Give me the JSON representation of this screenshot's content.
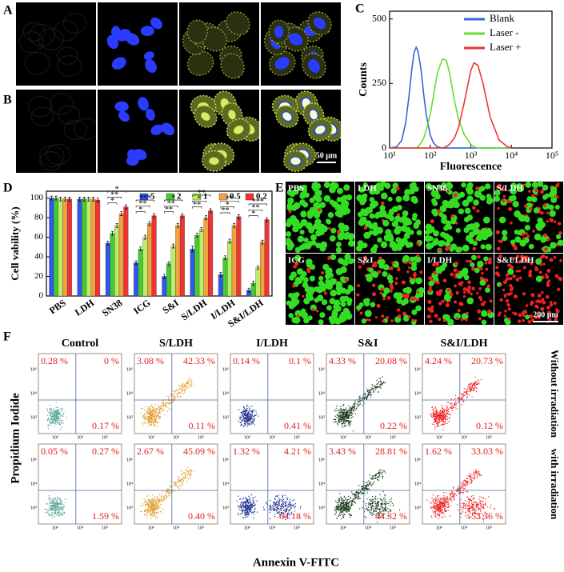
{
  "panel_labels": [
    "A",
    "B",
    "C",
    "D",
    "E",
    "F"
  ],
  "microscopy": {
    "scale_bar": "50 μm"
  },
  "live_dead": {
    "labels": [
      "PBS",
      "LDH",
      "SN38",
      "S/LDH",
      "ICG",
      "S&I",
      "I/LDH",
      "S&I/LDH"
    ],
    "scale_bar": "200 μm"
  },
  "chart_data": [
    {
      "type": "line",
      "x_label": "Fluorescence",
      "y_label": "Counts",
      "log_x": true,
      "legend": "top-right",
      "x": [
        10,
        15,
        20,
        25,
        30,
        35,
        40,
        45,
        50,
        60,
        70,
        80,
        100,
        120,
        150,
        200,
        250,
        300,
        400,
        500,
        700,
        1000,
        1200,
        1500,
        2000,
        3000,
        5000,
        8000,
        10000
      ],
      "series": [
        {
          "name": "Blank",
          "color": "#3366dd",
          "values": [
            0,
            5,
            30,
            100,
            200,
            300,
            370,
            390,
            375,
            300,
            200,
            130,
            50,
            20,
            5,
            0,
            0,
            0,
            0,
            0,
            0,
            0,
            0,
            0,
            0,
            0,
            0,
            0,
            0
          ]
        },
        {
          "name": "Laser -",
          "color": "#66dd33",
          "values": [
            0,
            0,
            0,
            0,
            0,
            0,
            0,
            0,
            5,
            20,
            40,
            70,
            130,
            200,
            290,
            345,
            340,
            290,
            180,
            110,
            50,
            15,
            5,
            0,
            0,
            0,
            0,
            0,
            0
          ]
        },
        {
          "name": "Laser +",
          "color": "#ee3333",
          "values": [
            0,
            0,
            0,
            0,
            0,
            0,
            0,
            0,
            0,
            0,
            0,
            0,
            0,
            0,
            0,
            0,
            5,
            15,
            40,
            80,
            180,
            300,
            330,
            320,
            250,
            120,
            30,
            5,
            0
          ]
        }
      ],
      "xlim": [
        10,
        100000
      ],
      "xticks": [
        {
          "value": 10,
          "label": "10¹"
        },
        {
          "value": 100,
          "label": "10²"
        },
        {
          "value": 1000,
          "label": "10³"
        },
        {
          "value": 10000,
          "label": "10⁴"
        },
        {
          "value": 100000,
          "label": "10⁵"
        }
      ],
      "ylim": [
        0,
        530
      ],
      "yticks": [
        0,
        250,
        500
      ]
    },
    {
      "type": "bar",
      "y_label": "Cell vability (%)",
      "legend": "top-right",
      "categories": [
        "PBS",
        "LDH",
        "SN38",
        "ICG",
        "S&I",
        "S/LDH",
        "I/LDH",
        "S&I/LDH"
      ],
      "series": [
        {
          "name": "5",
          "color": "#3355ee",
          "values": [
            100,
            99,
            54,
            34,
            20,
            48,
            22,
            6
          ],
          "errors": [
            2,
            2,
            2,
            2,
            2,
            3,
            2,
            2
          ]
        },
        {
          "name": "2",
          "color": "#44cc33",
          "values": [
            100,
            99,
            64,
            48,
            33,
            62,
            39,
            13
          ],
          "errors": [
            2,
            2,
            2,
            2,
            2,
            2,
            2,
            2
          ]
        },
        {
          "name": "1",
          "color": "#bbee66",
          "values": [
            99,
            99,
            72,
            60,
            51,
            68,
            56,
            29
          ],
          "errors": [
            2,
            2,
            2,
            2,
            2,
            2,
            2,
            2
          ]
        },
        {
          "name": "0.5",
          "color": "#f2a040",
          "values": [
            99,
            99,
            84,
            74,
            72,
            80,
            72,
            55
          ],
          "errors": [
            2,
            2,
            2,
            2,
            2,
            2,
            2,
            2
          ]
        },
        {
          "name": "0.2",
          "color": "#ee3333",
          "values": [
            99,
            98,
            91,
            82,
            82,
            87,
            81,
            78
          ],
          "errors": [
            2,
            2,
            2,
            2,
            2,
            2,
            2,
            2
          ]
        }
      ],
      "significance": [
        {
          "category": "SN38",
          "labels": [
            "*",
            "**",
            "*"
          ]
        },
        {
          "category": "ICG",
          "labels": [
            "***",
            "**",
            "*"
          ]
        },
        {
          "category": "S&I",
          "labels": [
            "*",
            "**",
            "**"
          ]
        },
        {
          "category": "S/LDH",
          "labels": [
            "**",
            "*",
            "**"
          ]
        },
        {
          "category": "I/LDH",
          "labels": [
            "**",
            "*",
            "**"
          ]
        },
        {
          "category": "S&I/LDH",
          "labels": [
            "***",
            "**",
            "*"
          ]
        }
      ],
      "ylim": [
        0,
        107
      ],
      "yticks": [
        0,
        20,
        40,
        60,
        80,
        100
      ]
    }
  ],
  "flow": {
    "x_label": "Annexin V-FITC",
    "y_label": "Propidium Iodide",
    "ticks": [
      "10²",
      "10⁴",
      "10⁶"
    ],
    "columns": [
      {
        "title": "Control",
        "color": "#5aa89a"
      },
      {
        "title": "S/LDH",
        "color": "#e0a030"
      },
      {
        "title": "I/LDH",
        "color": "#1c2c8c"
      },
      {
        "title": "S&I",
        "color": "#1a3a1a"
      },
      {
        "title": "S&I/LDH",
        "color": "#ee2222"
      }
    ],
    "rows": [
      {
        "label": "Without irradiation",
        "plots": [
          {
            "ul": "0.28 %",
            "ur": "0 %",
            "lr": "0.17 %"
          },
          {
            "ul": "3.08 %",
            "ur": "42.33 %",
            "lr": "0.11 %"
          },
          {
            "ul": "0.14 %",
            "ur": "0.1 %",
            "lr": "0.41 %"
          },
          {
            "ul": "4.33 %",
            "ur": "20.08 %",
            "lr": "0.22 %"
          },
          {
            "ul": "4.24 %",
            "ur": "20.73 %",
            "lr": "0.12 %"
          }
        ]
      },
      {
        "label": "with irradiation",
        "plots": [
          {
            "ul": "0.05 %",
            "ur": "0.27 %",
            "lr": "1.59 %"
          },
          {
            "ul": "2.67 %",
            "ur": "45.09 %",
            "lr": "0.40 %"
          },
          {
            "ul": "1.32 %",
            "ur": "4.21 %",
            "lr": "64.18 %"
          },
          {
            "ul": "3.43 %",
            "ur": "28.81 %",
            "lr": "44.32 %"
          },
          {
            "ul": "1.62 %",
            "ur": "33.03 %",
            "lr": "53.36 %"
          }
        ]
      }
    ]
  }
}
